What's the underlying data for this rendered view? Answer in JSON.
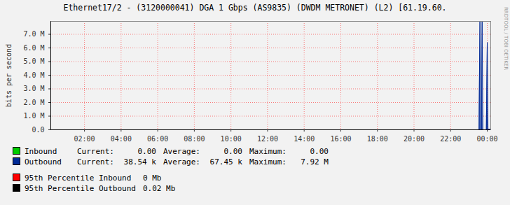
{
  "chart_data": {
    "type": "area",
    "title": "Ethernet17/2 - (3120000041) DGA 1 Gbps (AS9835) (DWDM METRONET) (L2) [61.19.60.",
    "y_label": "bits per second",
    "side_text": "RRDTOOL / TOBI OETIKER",
    "x": [
      0.16,
      23.55,
      23.6,
      23.64,
      23.68,
      23.72,
      23.76,
      23.95,
      24.0,
      24.04,
      24.19
    ],
    "series": [
      {
        "name": "Inbound",
        "color": "#00cc00",
        "values": [
          0,
          0,
          0,
          0,
          0,
          0,
          0,
          0,
          0,
          0,
          0
        ]
      },
      {
        "name": "Outbound",
        "color": "#002a97",
        "values": [
          0,
          0,
          7920000,
          0,
          0,
          7920000,
          0,
          0,
          6400000,
          38540,
          38540
        ]
      }
    ],
    "xlim": [
      0.16,
      24.19
    ],
    "xticks": [
      {
        "value": 2,
        "label": "02:00"
      },
      {
        "value": 4,
        "label": "04:00"
      },
      {
        "value": 6,
        "label": "06:00"
      },
      {
        "value": 8,
        "label": "08:00"
      },
      {
        "value": 10,
        "label": "10:00"
      },
      {
        "value": 12,
        "label": "12:00"
      },
      {
        "value": 14,
        "label": "14:00"
      },
      {
        "value": 16,
        "label": "16:00"
      },
      {
        "value": 18,
        "label": "18:00"
      },
      {
        "value": 20,
        "label": "20:00"
      },
      {
        "value": 22,
        "label": "22:00"
      },
      {
        "value": 24,
        "label": "00:00"
      }
    ],
    "ylim": [
      0,
      7950000
    ],
    "yticks": [
      {
        "value": 0,
        "label": "0.0"
      },
      {
        "value": 1000000,
        "label": "1.0 M"
      },
      {
        "value": 2000000,
        "label": "2.0 M"
      },
      {
        "value": 3000000,
        "label": "3.0 M"
      },
      {
        "value": 4000000,
        "label": "4.0 M"
      },
      {
        "value": 5000000,
        "label": "5.0 M"
      },
      {
        "value": 6000000,
        "label": "6.0 M"
      },
      {
        "value": 7000000,
        "label": "7.0 M"
      }
    ],
    "grid": true,
    "stat_names": [
      "Current:",
      "Average:",
      "Maximum:"
    ],
    "stats": [
      {
        "series": "Inbound",
        "values": [
          {
            "value": 0,
            "label": "0.00"
          },
          {
            "value": 0,
            "label": "0.00"
          },
          {
            "value": 0,
            "label": "0.00"
          }
        ]
      },
      {
        "series": "Outbound",
        "values": [
          {
            "value": 38540,
            "label": "38.54 k"
          },
          {
            "value": 67450,
            "label": "67.45 k"
          },
          {
            "value": 7920000,
            "label": "7.92 M"
          }
        ]
      }
    ],
    "percentiles": [
      {
        "label": "95th Percentile Inbound",
        "value": 0,
        "value_label": "0 Mb",
        "color": "#ff0000"
      },
      {
        "label": "95th Percentile Outbound",
        "value": 20000,
        "value_label": "0.02 Mb",
        "color": "#000000"
      }
    ]
  }
}
